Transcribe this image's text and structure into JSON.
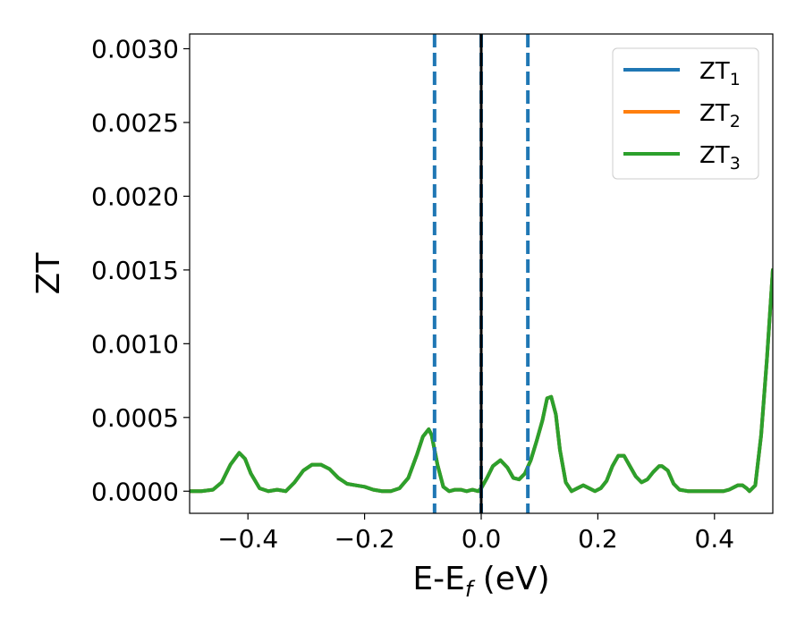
{
  "chart_data": {
    "type": "line",
    "title": "",
    "xlabel": "E-E",
    "xlabel_sub": "f",
    "xlabel_unit": " (eV)",
    "ylabel": "ZT",
    "xlim": [
      -0.5,
      0.5
    ],
    "ylim": [
      -0.00015,
      0.0031
    ],
    "xticks": [
      -0.4,
      -0.2,
      0.0,
      0.2,
      0.4
    ],
    "xtick_labels": [
      "−0.4",
      "−0.2",
      "0.0",
      "0.2",
      "0.4"
    ],
    "yticks": [
      0.0,
      0.0005,
      0.001,
      0.0015,
      0.002,
      0.0025,
      0.003
    ],
    "ytick_labels": [
      "0.0000",
      "0.0005",
      "0.0010",
      "0.0015",
      "0.0020",
      "0.0025",
      "0.0030"
    ],
    "grid": false,
    "legend_position": "top-right",
    "vlines": [
      {
        "x": -0.08,
        "style": "dashed",
        "color": "#1f77b4"
      },
      {
        "x": 0.0,
        "style": "dashed",
        "color": "#1f77b4"
      },
      {
        "x": 0.0,
        "style": "solid",
        "color": "#000000"
      },
      {
        "x": 0.08,
        "style": "dashed",
        "color": "#1f77b4"
      }
    ],
    "x": [
      -0.5,
      -0.48,
      -0.46,
      -0.445,
      -0.43,
      -0.415,
      -0.405,
      -0.395,
      -0.38,
      -0.365,
      -0.35,
      -0.335,
      -0.32,
      -0.305,
      -0.29,
      -0.275,
      -0.26,
      -0.245,
      -0.23,
      -0.215,
      -0.2,
      -0.185,
      -0.17,
      -0.155,
      -0.14,
      -0.125,
      -0.11,
      -0.1,
      -0.09,
      -0.085,
      -0.075,
      -0.065,
      -0.055,
      -0.045,
      -0.035,
      -0.025,
      -0.015,
      -0.005,
      0.0,
      0.01,
      0.02,
      0.033,
      0.045,
      0.055,
      0.065,
      0.075,
      0.085,
      0.095,
      0.105,
      0.113,
      0.12,
      0.128,
      0.135,
      0.145,
      0.155,
      0.165,
      0.175,
      0.185,
      0.195,
      0.205,
      0.215,
      0.225,
      0.235,
      0.245,
      0.255,
      0.265,
      0.275,
      0.285,
      0.295,
      0.305,
      0.31,
      0.32,
      0.33,
      0.34,
      0.355,
      0.37,
      0.385,
      0.4,
      0.415,
      0.425,
      0.435,
      0.44,
      0.448,
      0.455,
      0.46,
      0.47,
      0.48,
      0.49,
      0.5
    ],
    "series": [
      {
        "name": "ZT",
        "sub": "1",
        "color": "#1f77b4",
        "y": [
          0.0,
          0.0,
          1e-05,
          6e-05,
          0.00018,
          0.00026,
          0.00022,
          0.00012,
          2e-05,
          0.0,
          1e-05,
          0.0,
          6e-05,
          0.00014,
          0.00018,
          0.00018,
          0.00015,
          9e-05,
          5e-05,
          4e-05,
          3e-05,
          1e-05,
          0.0,
          0.0,
          2e-05,
          9e-05,
          0.00025,
          0.00037,
          0.00042,
          0.00038,
          0.00018,
          3e-05,
          0.0,
          1e-05,
          1e-05,
          0.0,
          1e-05,
          0.0,
          2e-05,
          9e-05,
          0.00017,
          0.00021,
          0.00016,
          9e-05,
          8e-05,
          0.00012,
          0.00021,
          0.00034,
          0.00048,
          0.00063,
          0.00064,
          0.00052,
          0.00028,
          6e-05,
          0.0,
          2e-05,
          4e-05,
          2e-05,
          0.0,
          2e-05,
          7e-05,
          0.00017,
          0.00024,
          0.00024,
          0.00017,
          0.0001,
          6e-05,
          8e-05,
          0.00013,
          0.00017,
          0.00017,
          0.00014,
          5e-05,
          1e-05,
          0.0,
          0.0,
          0.0,
          0.0,
          0.0,
          1e-05,
          3e-05,
          4e-05,
          4e-05,
          2e-05,
          0.0,
          4e-05,
          0.00038,
          0.0009,
          0.0015
        ]
      },
      {
        "name": "ZT",
        "sub": "2",
        "color": "#ff7f0e",
        "y": [
          0.0,
          0.0,
          1e-05,
          6e-05,
          0.00018,
          0.00026,
          0.00022,
          0.00012,
          2e-05,
          0.0,
          1e-05,
          0.0,
          6e-05,
          0.00014,
          0.00018,
          0.00018,
          0.00015,
          9e-05,
          5e-05,
          4e-05,
          3e-05,
          1e-05,
          0.0,
          0.0,
          2e-05,
          9e-05,
          0.00025,
          0.00037,
          0.00042,
          0.00038,
          0.00018,
          3e-05,
          0.0,
          1e-05,
          1e-05,
          0.0,
          1e-05,
          0.0,
          2e-05,
          9e-05,
          0.00017,
          0.00021,
          0.00016,
          9e-05,
          8e-05,
          0.00012,
          0.00021,
          0.00034,
          0.00048,
          0.00063,
          0.00064,
          0.00052,
          0.00028,
          6e-05,
          0.0,
          2e-05,
          4e-05,
          2e-05,
          0.0,
          2e-05,
          7e-05,
          0.00017,
          0.00024,
          0.00024,
          0.00017,
          0.0001,
          6e-05,
          8e-05,
          0.00013,
          0.00017,
          0.00017,
          0.00014,
          5e-05,
          1e-05,
          0.0,
          0.0,
          0.0,
          0.0,
          0.0,
          1e-05,
          3e-05,
          4e-05,
          4e-05,
          2e-05,
          0.0,
          4e-05,
          0.00038,
          0.0009,
          0.0015
        ]
      },
      {
        "name": "ZT",
        "sub": "3",
        "color": "#2ca02c",
        "y": [
          0.0,
          0.0,
          1e-05,
          6e-05,
          0.00018,
          0.00026,
          0.00022,
          0.00012,
          2e-05,
          0.0,
          1e-05,
          0.0,
          6e-05,
          0.00014,
          0.00018,
          0.00018,
          0.00015,
          9e-05,
          5e-05,
          4e-05,
          3e-05,
          1e-05,
          0.0,
          0.0,
          2e-05,
          9e-05,
          0.00025,
          0.00037,
          0.00042,
          0.00038,
          0.00018,
          3e-05,
          0.0,
          1e-05,
          1e-05,
          0.0,
          1e-05,
          0.0,
          2e-05,
          9e-05,
          0.00017,
          0.00021,
          0.00016,
          9e-05,
          8e-05,
          0.00012,
          0.00021,
          0.00034,
          0.00048,
          0.00063,
          0.00064,
          0.00052,
          0.00028,
          6e-05,
          0.0,
          2e-05,
          4e-05,
          2e-05,
          0.0,
          2e-05,
          7e-05,
          0.00017,
          0.00024,
          0.00024,
          0.00017,
          0.0001,
          6e-05,
          8e-05,
          0.00013,
          0.00017,
          0.00017,
          0.00014,
          5e-05,
          1e-05,
          0.0,
          0.0,
          0.0,
          0.0,
          0.0,
          1e-05,
          3e-05,
          4e-05,
          4e-05,
          2e-05,
          0.0,
          4e-05,
          0.00038,
          0.0009,
          0.0015
        ]
      }
    ]
  }
}
